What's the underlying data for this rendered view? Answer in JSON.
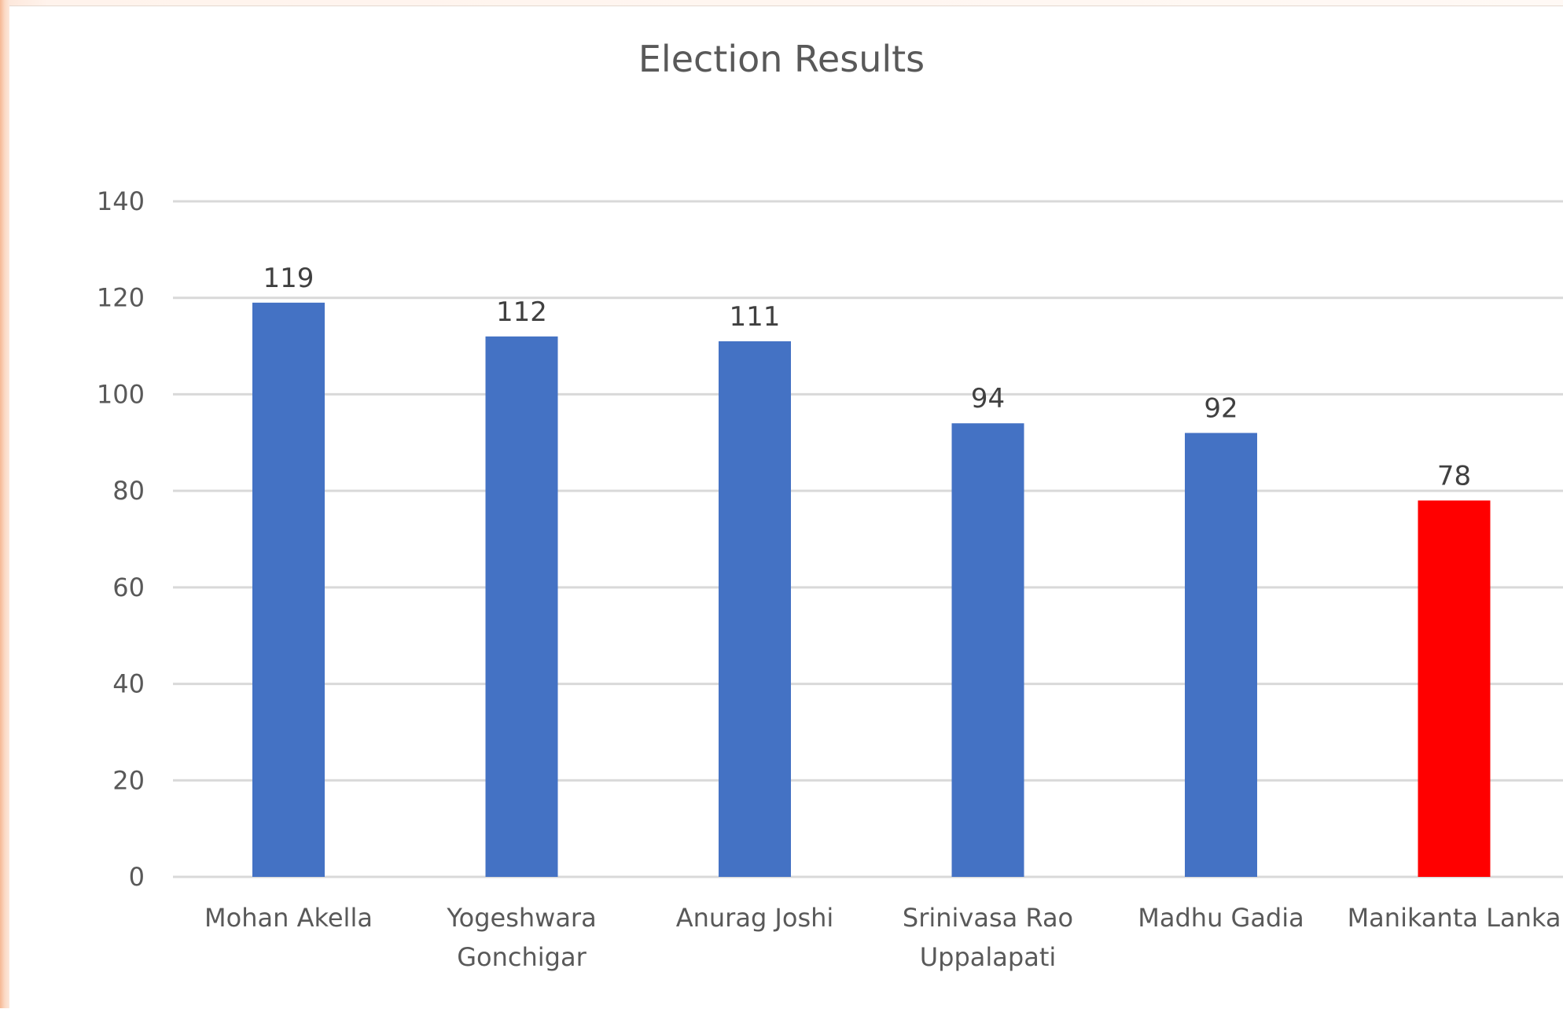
{
  "chart_data": {
    "type": "bar",
    "title": "Election Results",
    "categories": [
      [
        "Mohan Akella"
      ],
      [
        "Yogeshwara",
        "Gonchigar"
      ],
      [
        "Anurag Joshi"
      ],
      [
        "Srinivasa Rao",
        "Uppalapati"
      ],
      [
        "Madhu Gadia"
      ],
      [
        "Manikanta Lanka"
      ]
    ],
    "values": [
      119,
      112,
      111,
      94,
      92,
      78
    ],
    "bar_colors": [
      "#4472c4",
      "#4472c4",
      "#4472c4",
      "#4472c4",
      "#4472c4",
      "#ff0000"
    ],
    "yticks": [
      0,
      20,
      40,
      60,
      80,
      100,
      120,
      140
    ],
    "ylim": [
      0,
      140
    ],
    "grid": true,
    "legend": "none",
    "gridline_color": "#d9d9d9"
  }
}
